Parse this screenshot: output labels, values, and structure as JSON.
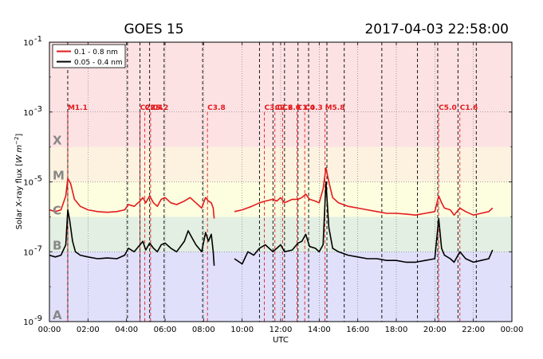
{
  "chart_data": {
    "type": "line",
    "title": "GOES 15",
    "timestamp": "2017-04-03 22:58:00",
    "xlabel": "UTC",
    "ylabel": "Solar X-ray flux [W m^-2]",
    "ylabel_parts": {
      "main": "Solar X-ray flux [",
      "unit": "W m",
      "exp": "−2",
      "close": "]"
    },
    "xlim": [
      0,
      24
    ],
    "ylim": [
      -9,
      -1
    ],
    "y_scale": "log",
    "grid": true,
    "legend_position": "top-left",
    "x_tick_values": [
      0,
      2,
      4,
      6,
      8,
      10,
      12,
      14,
      16,
      18,
      20,
      22,
      24
    ],
    "x_tick_labels": [
      "00:00",
      "02:00",
      "04:00",
      "06:00",
      "08:00",
      "10:00",
      "12:00",
      "14:00",
      "16:00",
      "18:00",
      "20:00",
      "22:00",
      "00:00"
    ],
    "y_tick_values": [
      -9,
      -7,
      -5,
      -3,
      -1
    ],
    "y_tick_labels": [
      {
        "base": "10",
        "exp": "-9"
      },
      {
        "base": "10",
        "exp": "-7"
      },
      {
        "base": "10",
        "exp": "-5"
      },
      {
        "base": "10",
        "exp": "-3"
      },
      {
        "base": "10",
        "exp": "-1"
      }
    ],
    "bands": [
      {
        "label": "A",
        "from": -9,
        "to": -7,
        "color": "#e0e0fb"
      },
      {
        "label": "B",
        "from": -7,
        "to": -6,
        "color": "#e2efe2"
      },
      {
        "label": "C",
        "from": -6,
        "to": -5,
        "color": "#fdfde0"
      },
      {
        "label": "M",
        "from": -5,
        "to": -4,
        "color": "#fdf2e0"
      },
      {
        "label": "X",
        "from": -4,
        "to": -1,
        "color": "#fde2e4"
      }
    ],
    "band_letter_color": "#888888",
    "vertical_dashed_lines_black": [
      0.95,
      4.05,
      4.7,
      5.2,
      5.95,
      7.95,
      10.9,
      11.6,
      12.2,
      12.9,
      13.45,
      14.4,
      15.3,
      17.25,
      19.1,
      20.15,
      21.2,
      22.15
    ],
    "flare_events": [
      {
        "time": 0.95,
        "label": "M1.1"
      },
      {
        "time": 4.7,
        "label": "C2.0"
      },
      {
        "time": 4.95,
        "label": "C2.4"
      },
      {
        "time": 5.25,
        "label": "C5.2"
      },
      {
        "time": 8.2,
        "label": "C3.8"
      },
      {
        "time": 11.15,
        "label": "C3.0"
      },
      {
        "time": 11.7,
        "label": "C2.6"
      },
      {
        "time": 12.1,
        "label": "C2.0"
      },
      {
        "time": 12.85,
        "label": "C1.0"
      },
      {
        "time": 13.25,
        "label": "C4.3"
      },
      {
        "time": 14.3,
        "label": "M5.8"
      },
      {
        "time": 20.2,
        "label": "C5.0"
      },
      {
        "time": 21.3,
        "label": "C1.6"
      }
    ],
    "series": [
      {
        "name": "0.1 - 0.8 nm",
        "color": "#e31a1c",
        "segments": [
          {
            "x": [
              0.0,
              0.3,
              0.6,
              0.85,
              0.95,
              1.1,
              1.3,
              1.6,
              2.0,
              2.5,
              3.0,
              3.5,
              3.9,
              4.1,
              4.4,
              4.7,
              4.85,
              5.0,
              5.2,
              5.4,
              5.6,
              5.8,
              6.0,
              6.3,
              6.6,
              7.0,
              7.3,
              7.6,
              7.9,
              8.1,
              8.25,
              8.4,
              8.5,
              8.55
            ],
            "y": [
              -5.8,
              -5.85,
              -5.8,
              -5.4,
              -4.9,
              -5.05,
              -5.5,
              -5.7,
              -5.8,
              -5.85,
              -5.87,
              -5.85,
              -5.8,
              -5.65,
              -5.7,
              -5.55,
              -5.45,
              -5.6,
              -5.4,
              -5.6,
              -5.7,
              -5.5,
              -5.45,
              -5.6,
              -5.65,
              -5.55,
              -5.45,
              -5.6,
              -5.75,
              -5.45,
              -5.55,
              -5.6,
              -5.75,
              -6.05
            ]
          },
          {
            "x": [
              9.6,
              10.0,
              10.5,
              10.9,
              11.2,
              11.6,
              11.8,
              12.0,
              12.2,
              12.6,
              12.9,
              13.1,
              13.3,
              13.5,
              13.8,
              14.0,
              14.2,
              14.35,
              14.5,
              14.7,
              15.0,
              15.5,
              16.0,
              16.5,
              17.0,
              17.5,
              18.0,
              18.5,
              19.0,
              19.5,
              20.0,
              20.2,
              20.35,
              20.5,
              20.8,
              21.0,
              21.3,
              21.6,
              22.0,
              22.4,
              22.8,
              23.0
            ],
            "y": [
              -5.85,
              -5.8,
              -5.7,
              -5.6,
              -5.55,
              -5.5,
              -5.55,
              -5.45,
              -5.6,
              -5.5,
              -5.5,
              -5.45,
              -5.35,
              -5.5,
              -5.55,
              -5.6,
              -5.2,
              -4.6,
              -5.0,
              -5.45,
              -5.6,
              -5.7,
              -5.75,
              -5.8,
              -5.85,
              -5.9,
              -5.9,
              -5.92,
              -5.95,
              -5.9,
              -5.85,
              -5.4,
              -5.6,
              -5.75,
              -5.8,
              -5.95,
              -5.75,
              -5.85,
              -5.95,
              -5.9,
              -5.85,
              -5.75
            ]
          }
        ]
      },
      {
        "name": "0.05 - 0.4 nm",
        "color": "#000000",
        "segments": [
          {
            "x": [
              0.0,
              0.3,
              0.6,
              0.85,
              0.95,
              1.05,
              1.2,
              1.35,
              1.6,
              2.0,
              2.5,
              3.0,
              3.5,
              3.9,
              4.1,
              4.4,
              4.7,
              4.85,
              5.0,
              5.2,
              5.4,
              5.6,
              5.8,
              6.0,
              6.3,
              6.6,
              7.0,
              7.2,
              7.4,
              7.6,
              7.9,
              8.1,
              8.25,
              8.4,
              8.5,
              8.55
            ],
            "y": [
              -7.1,
              -7.15,
              -7.1,
              -6.8,
              -5.8,
              -6.1,
              -6.7,
              -7.0,
              -7.1,
              -7.15,
              -7.2,
              -7.18,
              -7.2,
              -7.1,
              -6.9,
              -7.0,
              -6.8,
              -6.7,
              -6.95,
              -6.75,
              -6.9,
              -7.0,
              -6.8,
              -6.75,
              -6.9,
              -7.0,
              -6.7,
              -6.4,
              -6.6,
              -6.8,
              -7.0,
              -6.45,
              -6.7,
              -6.5,
              -7.0,
              -7.4
            ]
          },
          {
            "x": [
              9.6,
              10.0,
              10.3,
              10.6,
              10.9,
              11.2,
              11.6,
              11.8,
              12.0,
              12.2,
              12.6,
              12.9,
              13.1,
              13.3,
              13.5,
              13.8,
              14.0,
              14.2,
              14.35,
              14.5,
              14.7,
              15.0,
              15.5,
              16.0,
              16.5,
              17.0,
              17.5,
              18.0,
              18.5,
              19.0,
              19.5,
              20.0,
              20.2,
              20.35,
              20.5,
              20.8,
              21.0,
              21.3,
              21.6,
              22.0,
              22.4,
              22.8,
              23.0
            ],
            "y": [
              -7.2,
              -7.35,
              -7.0,
              -7.1,
              -6.9,
              -6.8,
              -7.0,
              -6.9,
              -6.8,
              -7.0,
              -6.95,
              -6.75,
              -6.7,
              -6.5,
              -6.85,
              -6.9,
              -7.0,
              -6.8,
              -5.0,
              -6.3,
              -6.9,
              -7.0,
              -7.1,
              -7.15,
              -7.2,
              -7.2,
              -7.25,
              -7.25,
              -7.3,
              -7.3,
              -7.25,
              -7.2,
              -6.05,
              -6.9,
              -7.1,
              -7.2,
              -7.3,
              -7.0,
              -7.2,
              -7.3,
              -7.25,
              -7.2,
              -6.95
            ]
          }
        ]
      }
    ]
  }
}
